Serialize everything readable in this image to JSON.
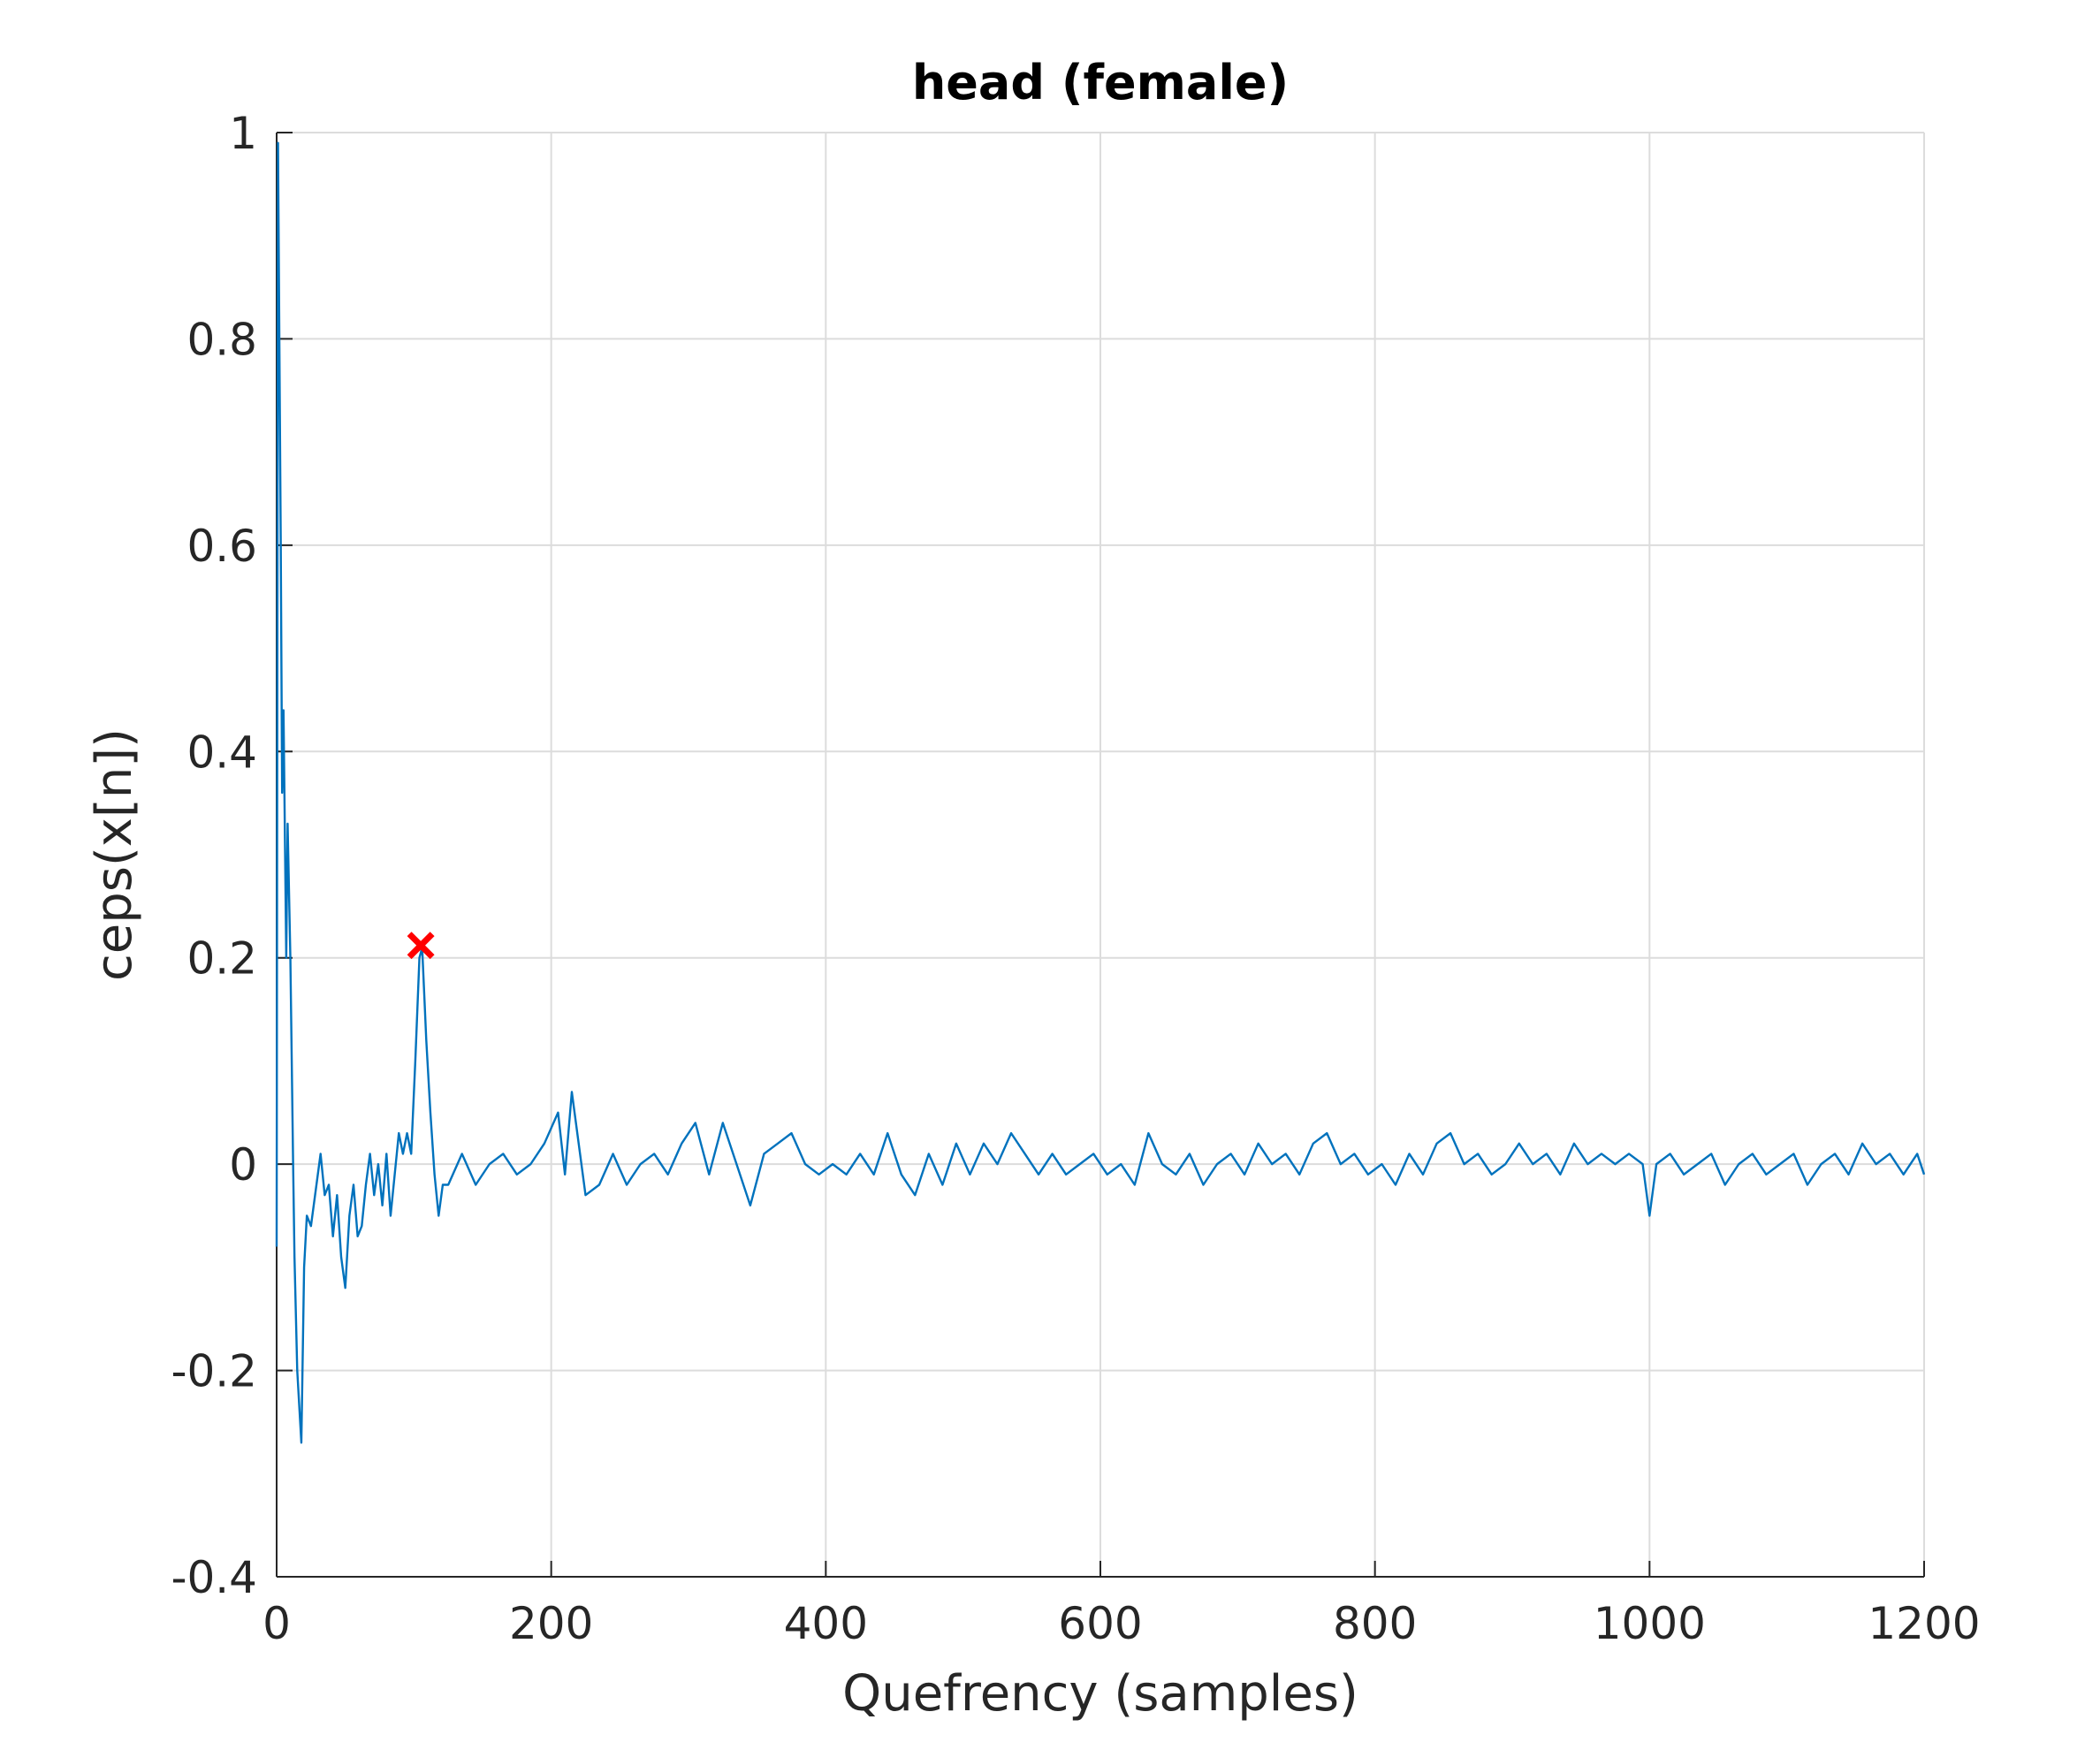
{
  "chart_data": {
    "type": "line",
    "title": "head (female)",
    "xlabel": "Quefrency (samples)",
    "ylabel": "ceps(x[n])",
    "color": "#0072bd",
    "grid": true,
    "xlim": [
      0,
      1200
    ],
    "xticks": [
      0,
      200,
      400,
      600,
      800,
      1000,
      1200
    ],
    "ylim": [
      -0.4,
      1
    ],
    "yticks": [
      -0.4,
      -0.2,
      0,
      0.2,
      0.4,
      0.6,
      0.8,
      1
    ],
    "x": [
      0,
      1,
      3,
      4,
      5,
      7,
      8,
      10,
      12,
      13,
      15,
      18,
      20,
      22,
      25,
      28,
      32,
      35,
      38,
      41,
      44,
      47,
      50,
      53,
      56,
      59,
      62,
      65,
      68,
      71,
      74,
      77,
      80,
      83,
      86,
      89,
      92,
      95,
      98,
      101,
      104,
      106,
      109,
      112,
      115,
      118,
      121,
      125,
      135,
      145,
      155,
      165,
      175,
      185,
      195,
      205,
      210,
      215,
      220,
      225,
      235,
      245,
      255,
      265,
      275,
      285,
      295,
      305,
      315,
      325,
      335,
      345,
      355,
      365,
      375,
      385,
      395,
      405,
      415,
      425,
      435,
      445,
      455,
      465,
      475,
      485,
      495,
      505,
      515,
      525,
      535,
      545,
      555,
      565,
      575,
      585,
      595,
      605,
      615,
      625,
      635,
      645,
      655,
      665,
      675,
      685,
      695,
      705,
      715,
      725,
      735,
      745,
      755,
      765,
      775,
      785,
      795,
      805,
      815,
      825,
      835,
      845,
      855,
      865,
      875,
      885,
      895,
      905,
      915,
      925,
      935,
      945,
      955,
      965,
      975,
      985,
      995,
      1000,
      1005,
      1015,
      1025,
      1035,
      1045,
      1055,
      1065,
      1075,
      1085,
      1095,
      1105,
      1115,
      1125,
      1135,
      1145,
      1155,
      1165,
      1175,
      1185,
      1195,
      1200
    ],
    "values": [
      -0.08,
      0.99,
      0.6,
      0.36,
      0.44,
      0.2,
      0.33,
      0.2,
      0.0,
      -0.09,
      -0.2,
      -0.27,
      -0.1,
      -0.05,
      -0.06,
      -0.03,
      0.01,
      -0.03,
      -0.02,
      -0.07,
      -0.03,
      -0.09,
      -0.12,
      -0.05,
      -0.02,
      -0.07,
      -0.06,
      -0.02,
      0.01,
      -0.03,
      0.0,
      -0.04,
      0.01,
      -0.05,
      -0.01,
      0.03,
      0.01,
      0.03,
      0.01,
      0.1,
      0.2,
      0.21,
      0.12,
      0.05,
      -0.01,
      -0.05,
      -0.02,
      -0.02,
      0.01,
      -0.02,
      0.0,
      0.01,
      -0.01,
      0.0,
      0.02,
      0.05,
      -0.01,
      0.07,
      0.02,
      -0.03,
      -0.02,
      0.01,
      -0.02,
      0.0,
      0.01,
      -0.01,
      0.02,
      0.04,
      -0.01,
      0.04,
      0.0,
      -0.04,
      0.01,
      0.02,
      0.03,
      0.0,
      -0.01,
      0.0,
      -0.01,
      0.01,
      -0.01,
      0.03,
      -0.01,
      -0.03,
      0.01,
      -0.02,
      0.02,
      -0.01,
      0.02,
      0.0,
      0.03,
      0.01,
      -0.01,
      0.01,
      -0.01,
      0.0,
      0.01,
      -0.01,
      0.0,
      -0.02,
      0.03,
      0.0,
      -0.01,
      0.01,
      -0.02,
      0.0,
      0.01,
      -0.01,
      0.02,
      0.0,
      0.01,
      -0.01,
      0.02,
      0.03,
      0.0,
      0.01,
      -0.01,
      0.0,
      -0.02,
      0.01,
      -0.01,
      0.02,
      0.03,
      0.0,
      0.01,
      -0.01,
      0.0,
      0.02,
      0.0,
      0.01,
      -0.01,
      0.02,
      0.0,
      0.01,
      0.0,
      0.01,
      0.0,
      -0.05,
      0.0,
      0.01,
      -0.01,
      0.0,
      0.01,
      -0.02,
      0.0,
      0.01,
      -0.01,
      0.0,
      0.01,
      -0.02,
      0.0,
      0.01,
      -0.01,
      0.02,
      0.0,
      0.01,
      -0.01,
      0.01,
      -0.01
    ],
    "peak": {
      "x": 105,
      "value": 0.212,
      "color": "#ff0000"
    }
  }
}
